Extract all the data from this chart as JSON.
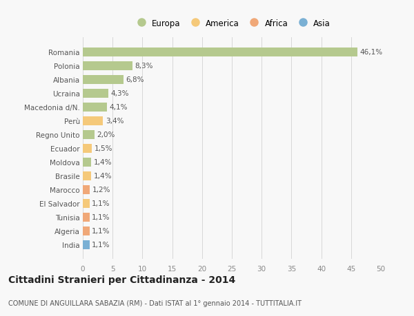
{
  "countries": [
    "Romania",
    "Polonia",
    "Albania",
    "Ucraina",
    "Macedonia d/N.",
    "Perù",
    "Regno Unito",
    "Ecuador",
    "Moldova",
    "Brasile",
    "Marocco",
    "El Salvador",
    "Tunisia",
    "Algeria",
    "India"
  ],
  "values": [
    46.1,
    8.3,
    6.8,
    4.3,
    4.1,
    3.4,
    2.0,
    1.5,
    1.4,
    1.4,
    1.2,
    1.1,
    1.1,
    1.1,
    1.1
  ],
  "labels": [
    "46,1%",
    "8,3%",
    "6,8%",
    "4,3%",
    "4,1%",
    "3,4%",
    "2,0%",
    "1,5%",
    "1,4%",
    "1,4%",
    "1,2%",
    "1,1%",
    "1,1%",
    "1,1%",
    "1,1%"
  ],
  "continent": [
    "Europa",
    "Europa",
    "Europa",
    "Europa",
    "Europa",
    "America",
    "Europa",
    "America",
    "Europa",
    "America",
    "Africa",
    "America",
    "Africa",
    "Africa",
    "Asia"
  ],
  "colors": {
    "Europa": "#b5c98e",
    "America": "#f5c97a",
    "Africa": "#f0a878",
    "Asia": "#7ab0d4"
  },
  "legend_order": [
    "Europa",
    "America",
    "Africa",
    "Asia"
  ],
  "legend_colors": [
    "#b5c98e",
    "#f5c97a",
    "#f0a878",
    "#7ab0d4"
  ],
  "title1": "Cittadini Stranieri per Cittadinanza - 2014",
  "title2": "COMUNE DI ANGUILLARA SABAZIA (RM) - Dati ISTAT al 1° gennaio 2014 - TUTTITALIA.IT",
  "xlim": [
    0,
    50
  ],
  "xticks": [
    0,
    5,
    10,
    15,
    20,
    25,
    30,
    35,
    40,
    45,
    50
  ],
  "background_color": "#f8f8f8",
  "grid_color": "#d8d8d8",
  "bar_height": 0.65,
  "label_fontsize": 7.5,
  "tick_fontsize": 7.5,
  "title1_fontsize": 10,
  "title2_fontsize": 7
}
